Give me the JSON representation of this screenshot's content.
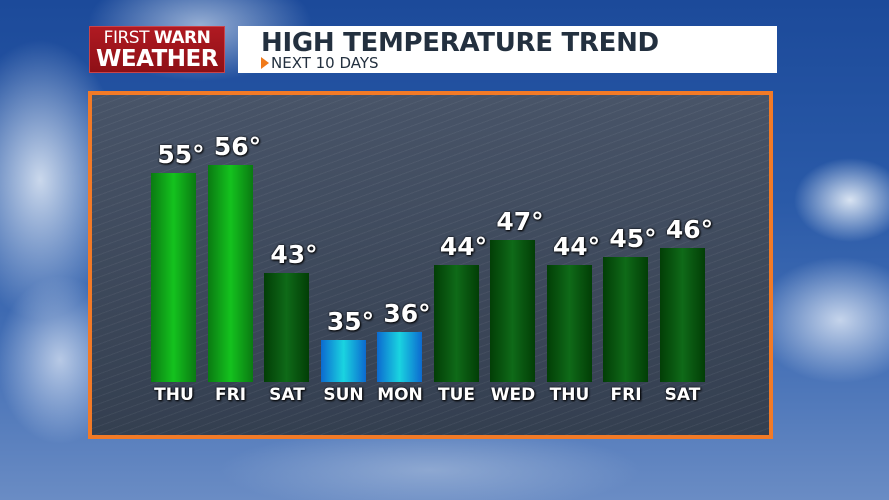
{
  "logo": {
    "line1_a": "FIRST",
    "line1_b": "WARN",
    "line2": "WEATHER"
  },
  "header": {
    "title": "HIGH TEMPERATURE TREND",
    "subtitle": "NEXT 10 DAYS"
  },
  "colors": {
    "border": "#f27a27",
    "brand_red": "#a0161d",
    "warm_bar": "#14c21e",
    "mild_bar": "#0f6a18",
    "cold_bar": "#1ad4e0"
  },
  "chart_data": {
    "type": "bar",
    "title": "HIGH TEMPERATURE TREND",
    "subtitle": "NEXT 10 DAYS",
    "categories": [
      "THU",
      "FRI",
      "SAT",
      "SUN",
      "MON",
      "TUE",
      "WED",
      "THU",
      "FRI",
      "SAT"
    ],
    "values": [
      55,
      56,
      43,
      35,
      36,
      44,
      47,
      44,
      45,
      46
    ],
    "labels": [
      "55°",
      "56°",
      "43°",
      "35°",
      "36°",
      "44°",
      "47°",
      "44°",
      "45°",
      "46°"
    ],
    "bar_styles": [
      "green-bright",
      "green-bright",
      "green-dark",
      "blue",
      "blue",
      "green-dark",
      "green-dark",
      "green-dark",
      "green-dark",
      "green-dark"
    ],
    "xlabel": "",
    "ylabel": "",
    "grid": false,
    "legend": "none"
  }
}
